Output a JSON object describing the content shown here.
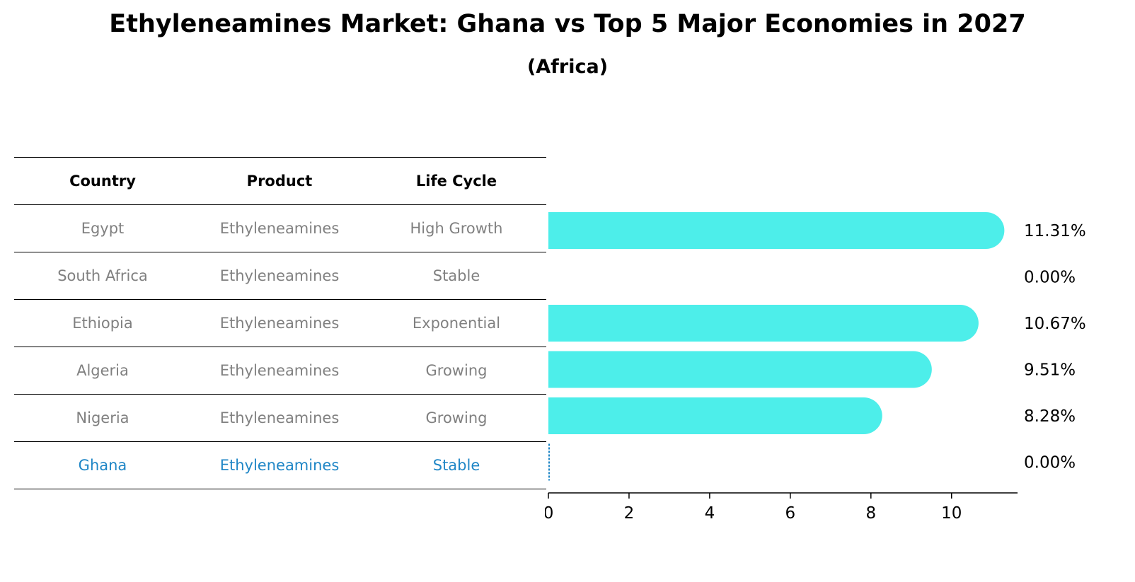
{
  "title": "Ethyleneamines Market: Ghana vs Top 5 Major Economies in 2027",
  "subtitle": "(Africa)",
  "table": {
    "headers": [
      "Country",
      "Product",
      "Life Cycle"
    ],
    "rows": [
      [
        "Egypt",
        "Ethyleneamines",
        "High Growth"
      ],
      [
        "South Africa",
        "Ethyleneamines",
        "Stable"
      ],
      [
        "Ethiopia",
        "Ethyleneamines",
        "Exponential"
      ],
      [
        "Algeria",
        "Ethyleneamines",
        "Growing"
      ],
      [
        "Nigeria",
        "Ethyleneamines",
        "Growing"
      ],
      [
        "Ghana",
        "Ethyleneamines",
        "Stable"
      ]
    ],
    "highlight_row": 5
  },
  "chart_data": {
    "type": "bar",
    "orientation": "horizontal",
    "categories": [
      "Egypt",
      "South Africa",
      "Ethiopia",
      "Algeria",
      "Nigeria",
      "Ghana"
    ],
    "values": [
      11.31,
      0.0,
      10.67,
      9.51,
      8.28,
      0.0
    ],
    "value_labels": [
      "11.31%",
      "0.00%",
      "10.67%",
      "9.51%",
      "8.28%",
      "0.00%"
    ],
    "xticks": [
      0,
      2,
      4,
      6,
      8,
      10
    ],
    "xlim": [
      0,
      11.9
    ],
    "bar_color": "#4deeea",
    "highlight_color": "#1f86c6",
    "highlight_index": 5,
    "grid": false,
    "xlabel": "",
    "ylabel": ""
  }
}
